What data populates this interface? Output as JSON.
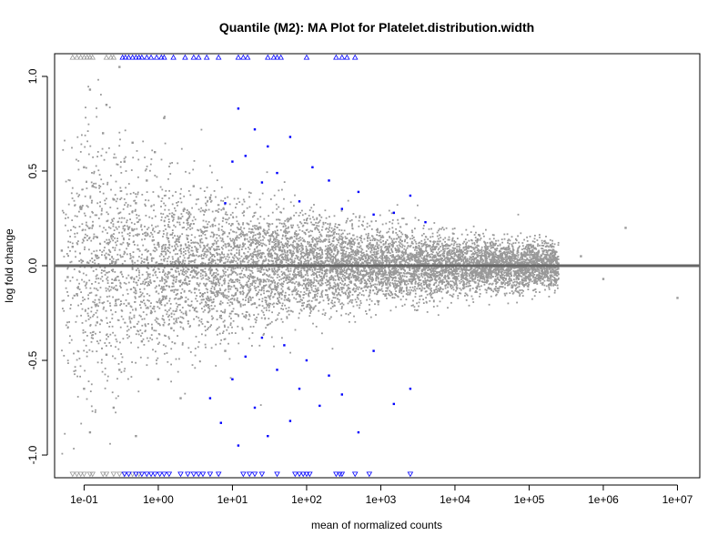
{
  "chart_data": {
    "type": "scatter",
    "title": "Quantile (M2): MA Plot for Platelet.distribution.width",
    "xlabel": "mean of normalized counts",
    "ylabel": "log fold change",
    "x_scale": "log10",
    "xlim": [
      0.04,
      20000000.0
    ],
    "ylim": [
      -1.12,
      1.12
    ],
    "x_ticks": [
      {
        "value": 0.1,
        "label": "1e-01"
      },
      {
        "value": 1,
        "label": "1e+00"
      },
      {
        "value": 10,
        "label": "1e+01"
      },
      {
        "value": 100,
        "label": "1e+02"
      },
      {
        "value": 1000,
        "label": "1e+03"
      },
      {
        "value": 10000,
        "label": "1e+04"
      },
      {
        "value": 100000,
        "label": "1e+05"
      },
      {
        "value": 1000000,
        "label": "1e+06"
      },
      {
        "value": 10000000,
        "label": "1e+07"
      }
    ],
    "y_ticks": [
      {
        "value": -1.0,
        "label": "-1.0"
      },
      {
        "value": -0.5,
        "label": "-0.5"
      },
      {
        "value": 0.0,
        "label": "0.0"
      },
      {
        "value": 0.5,
        "label": "0.5"
      },
      {
        "value": 1.0,
        "label": "1.0"
      }
    ],
    "reference_line": {
      "y": 0,
      "color": "#666666"
    },
    "colors": {
      "not_significant": "#999999",
      "significant": "#0000ff"
    },
    "series": [
      {
        "color": "#999999",
        "points": [
          [
            0.05,
            0.08
          ],
          [
            0.06,
            -0.06
          ],
          [
            0.07,
            0.1
          ],
          [
            0.08,
            -0.15
          ],
          [
            0.09,
            0.3
          ],
          [
            0.1,
            0.52
          ],
          [
            0.1,
            -0.65
          ],
          [
            0.12,
            0.93
          ],
          [
            0.12,
            -0.88
          ],
          [
            0.13,
            0.42
          ],
          [
            0.15,
            -0.3
          ],
          [
            0.15,
            0.15
          ],
          [
            0.18,
            0.7
          ],
          [
            0.2,
            -0.47
          ],
          [
            0.2,
            0.85
          ],
          [
            0.25,
            0.35
          ],
          [
            0.25,
            -0.75
          ],
          [
            0.3,
            1.05
          ],
          [
            0.3,
            -0.55
          ],
          [
            0.35,
            0.55
          ],
          [
            0.4,
            0.2
          ],
          [
            0.4,
            -0.2
          ],
          [
            0.45,
            0.65
          ],
          [
            0.5,
            -0.9
          ],
          [
            0.5,
            0.33
          ],
          [
            0.6,
            -0.4
          ],
          [
            0.7,
            0.45
          ],
          [
            0.8,
            -0.25
          ],
          [
            0.9,
            0.6
          ],
          [
            1.0,
            0.12
          ],
          [
            1.0,
            -0.6
          ],
          [
            1.2,
            0.78
          ],
          [
            1.5,
            -0.33
          ],
          [
            2.0,
            0.25
          ],
          [
            2.0,
            -0.7
          ],
          [
            3.0,
            0.42
          ],
          [
            4.0,
            -0.15
          ],
          [
            5.0,
            0.36
          ],
          [
            8.0,
            -0.45
          ],
          [
            10.0,
            0.22
          ],
          [
            20.0,
            -0.2
          ],
          [
            50.0,
            0.18
          ],
          [
            100.0,
            -0.12
          ],
          [
            300.0,
            0.14
          ],
          [
            1000.0,
            -0.09
          ],
          [
            3000.0,
            0.1
          ],
          [
            10000.0,
            -0.06
          ],
          [
            30000.0,
            0.12
          ],
          [
            100000.0,
            -0.05
          ],
          [
            200000.0,
            0.1
          ],
          [
            500000.0,
            0.05
          ],
          [
            1000000.0,
            -0.07
          ],
          [
            2000000.0,
            0.2
          ],
          [
            10000000.0,
            -0.17
          ]
        ]
      },
      {
        "color": "#0000ff",
        "points": [
          [
            8.0,
            0.33
          ],
          [
            10.0,
            0.55
          ],
          [
            12.0,
            0.83
          ],
          [
            15.0,
            0.58
          ],
          [
            20.0,
            0.72
          ],
          [
            25.0,
            0.44
          ],
          [
            30.0,
            0.63
          ],
          [
            40.0,
            0.49
          ],
          [
            60.0,
            0.68
          ],
          [
            80.0,
            0.34
          ],
          [
            120.0,
            0.52
          ],
          [
            200.0,
            0.45
          ],
          [
            300.0,
            0.3
          ],
          [
            500.0,
            0.39
          ],
          [
            800.0,
            0.27
          ],
          [
            1500.0,
            0.28
          ],
          [
            2500.0,
            0.37
          ],
          [
            4000.0,
            0.23
          ],
          [
            5.0,
            -0.7
          ],
          [
            7.0,
            -0.83
          ],
          [
            10.0,
            -0.6
          ],
          [
            12.0,
            -0.95
          ],
          [
            15.0,
            -0.48
          ],
          [
            20.0,
            -0.75
          ],
          [
            25.0,
            -0.38
          ],
          [
            30.0,
            -0.9
          ],
          [
            40.0,
            -0.55
          ],
          [
            50.0,
            -0.42
          ],
          [
            60.0,
            -0.82
          ],
          [
            80.0,
            -0.65
          ],
          [
            100.0,
            -0.5
          ],
          [
            150.0,
            -0.74
          ],
          [
            200.0,
            -0.58
          ],
          [
            300.0,
            -0.68
          ],
          [
            500.0,
            -0.88
          ],
          [
            800.0,
            -0.45
          ],
          [
            1500.0,
            -0.73
          ],
          [
            2500.0,
            -0.65
          ]
        ]
      }
    ],
    "clipped_markers": [
      {
        "edge": "top",
        "color": "#999999",
        "shape": "triangle-up",
        "x": [
          0.07,
          0.08,
          0.09,
          0.1,
          0.11,
          0.12,
          0.13,
          0.2,
          0.23,
          0.25
        ]
      },
      {
        "edge": "top",
        "color": "#0000ff",
        "shape": "triangle-up",
        "x": [
          0.33,
          0.36,
          0.4,
          0.45,
          0.5,
          0.55,
          0.6,
          0.7,
          0.8,
          0.95,
          1.1,
          1.2,
          1.6,
          2.3,
          3.0,
          3.5,
          4.5,
          6.5,
          12,
          14,
          16,
          30,
          36,
          40,
          45,
          100,
          250,
          300,
          350,
          450
        ]
      },
      {
        "edge": "bottom",
        "color": "#999999",
        "shape": "triangle-down",
        "x": [
          0.07,
          0.08,
          0.09,
          0.1,
          0.12,
          0.13,
          0.18,
          0.2,
          0.25,
          0.3,
          0.35,
          0.45,
          0.55
        ]
      },
      {
        "edge": "bottom",
        "color": "#0000ff",
        "shape": "triangle-down",
        "x": [
          0.35,
          0.4,
          0.5,
          0.6,
          0.7,
          0.8,
          0.9,
          1.05,
          1.2,
          1.4,
          2.0,
          2.5,
          3.0,
          3.5,
          4.0,
          5.0,
          6.5,
          14,
          17,
          20,
          25,
          40,
          70,
          80,
          90,
          100,
          110,
          250,
          280,
          300,
          450,
          700,
          2500
        ]
      }
    ]
  }
}
